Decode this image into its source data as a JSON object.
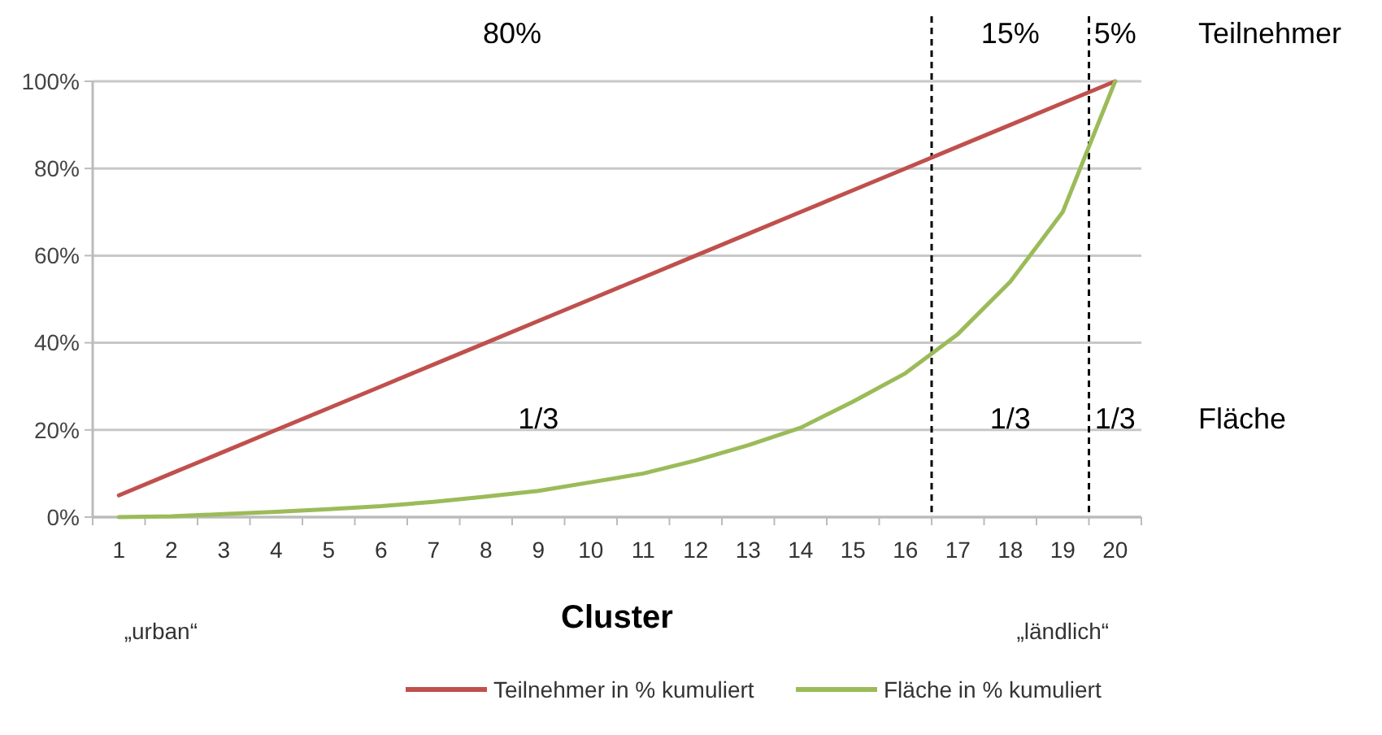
{
  "chart_data": {
    "type": "line",
    "xlabel": "Cluster",
    "x": [
      1,
      2,
      3,
      4,
      5,
      6,
      7,
      8,
      9,
      10,
      11,
      12,
      13,
      14,
      15,
      16,
      17,
      18,
      19,
      20
    ],
    "xlim": [
      0.5,
      20.5
    ],
    "xticks": [
      1,
      2,
      3,
      4,
      5,
      6,
      7,
      8,
      9,
      10,
      11,
      12,
      13,
      14,
      15,
      16,
      17,
      18,
      19,
      20
    ],
    "ylim": [
      0,
      100
    ],
    "yticks": [
      {
        "value": 0,
        "label": "0%"
      },
      {
        "value": 20,
        "label": "20%"
      },
      {
        "value": 40,
        "label": "40%"
      },
      {
        "value": 60,
        "label": "60%"
      },
      {
        "value": 80,
        "label": "80%"
      },
      {
        "value": 100,
        "label": "100%"
      }
    ],
    "grid": "y",
    "legend": "bottom",
    "marker": "none",
    "line_style": "solid",
    "series": [
      {
        "name": "Teilnehmer in % kumuliert",
        "color": "#c0504d",
        "values": [
          5,
          10,
          15,
          20,
          25,
          30,
          35,
          40,
          45,
          50,
          55,
          60,
          65,
          70,
          75,
          80,
          85,
          90,
          95,
          100
        ]
      },
      {
        "name": "Fläche in % kumuliert",
        "color": "#9bbb59",
        "values": [
          0,
          0.2,
          0.7,
          1.2,
          1.8,
          2.5,
          3.5,
          4.7,
          6,
          8,
          10,
          13,
          16.5,
          20.5,
          26.5,
          33,
          42,
          54,
          70,
          100
        ]
      }
    ],
    "ref_lines": [
      {
        "axis": "x",
        "value": 16.5,
        "color": "#000000",
        "line_style": "dashed"
      },
      {
        "axis": "x",
        "value": 19.5,
        "color": "#000000",
        "line_style": "dashed"
      }
    ],
    "annotations": [
      "80%",
      "15%",
      "5%",
      "Teilnehmer",
      "1/3",
      "1/3",
      "1/3",
      "Fläche",
      "„urban“",
      "„ländlich“"
    ]
  }
}
